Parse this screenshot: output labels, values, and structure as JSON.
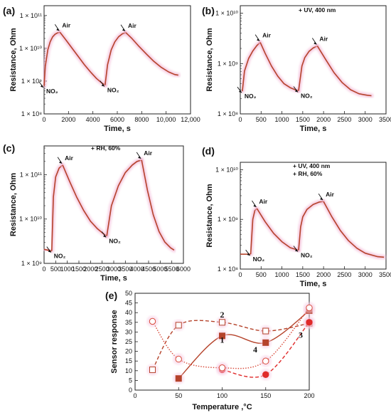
{
  "chart_data": [
    {
      "id": "a",
      "panel_label": "(a)",
      "type": "line",
      "xlabel": "Time, s",
      "ylabel": "Resistance, Ohm",
      "xlim": [
        0,
        12000
      ],
      "ylim_log10": [
        8,
        11.3
      ],
      "yscale": "log",
      "x_ticks": [
        0,
        2000,
        4000,
        6000,
        8000,
        10000,
        12000
      ],
      "x_tick_labels": [
        "0",
        "2000",
        "4000",
        "6000",
        "8000",
        "10,000",
        "12,000"
      ],
      "y_ticks_log10": [
        8,
        9,
        10,
        11
      ],
      "y_tick_labels": [
        "1 × 10⁸",
        "1 × 10⁹",
        "1 × 10¹⁰",
        "1 × 10¹¹"
      ],
      "conditions": [],
      "color": "#b5432b",
      "series": [
        {
          "x": [
            0,
            100,
            300,
            500,
            700,
            900,
            1100,
            1300
          ],
          "y": [
            8.85,
            9.45,
            9.95,
            10.2,
            10.35,
            10.43,
            10.47,
            10.49
          ]
        },
        {
          "x": [
            1300,
            1800,
            2300,
            2800,
            3300,
            3800,
            4300,
            4700,
            5000
          ],
          "y": [
            10.49,
            10.25,
            10.0,
            9.75,
            9.5,
            9.28,
            9.08,
            8.95,
            8.88
          ]
        },
        {
          "x": [
            5000,
            5200,
            5500,
            5800,
            6100,
            6400,
            6700
          ],
          "y": [
            8.88,
            9.5,
            9.95,
            10.2,
            10.35,
            10.44,
            10.48
          ]
        },
        {
          "x": [
            6700,
            7200,
            7800,
            8400,
            9000,
            9600,
            10200,
            10700,
            11000
          ],
          "y": [
            10.48,
            10.3,
            10.05,
            9.82,
            9.6,
            9.42,
            9.28,
            9.2,
            9.18
          ]
        }
      ],
      "annotations": [
        {
          "text": "Air",
          "x": 1300,
          "y": 10.49,
          "pos": "above"
        },
        {
          "text": "NO₂",
          "x": 0,
          "y": 8.85,
          "pos": "below"
        },
        {
          "text": "Air",
          "x": 6700,
          "y": 10.48,
          "pos": "above"
        },
        {
          "text": "NO₂",
          "x": 5000,
          "y": 8.88,
          "pos": "below"
        }
      ]
    },
    {
      "id": "b",
      "panel_label": "(b)",
      "type": "line",
      "xlabel": "Time, s",
      "ylabel": "Resistance, Ohm",
      "xlim": [
        0,
        3500
      ],
      "ylim_log10": [
        8,
        10.15
      ],
      "yscale": "log",
      "x_ticks": [
        0,
        500,
        1000,
        1500,
        2000,
        2500,
        3000,
        3500
      ],
      "x_tick_labels": [
        "0",
        "500",
        "1000",
        "1500",
        "2000",
        "2500",
        "3000",
        "3500"
      ],
      "y_ticks_log10": [
        8,
        9,
        10
      ],
      "y_tick_labels": [
        "1 × 10⁸",
        "1 × 10⁹",
        "1 × 10¹⁰"
      ],
      "conditions": [
        "+ UV, 400 nm"
      ],
      "color": "#b5432b",
      "series": [
        {
          "x": [
            50,
            100,
            200,
            300,
            400,
            480
          ],
          "y": [
            8.45,
            8.85,
            9.1,
            9.25,
            9.36,
            9.42
          ]
        },
        {
          "x": [
            480,
            600,
            750,
            900,
            1050,
            1200,
            1350,
            1400
          ],
          "y": [
            9.42,
            9.2,
            8.95,
            8.75,
            8.6,
            8.52,
            8.47,
            8.46
          ]
        },
        {
          "x": [
            1400,
            1480,
            1550,
            1650,
            1750,
            1850
          ],
          "y": [
            8.46,
            8.95,
            9.12,
            9.24,
            9.31,
            9.35
          ]
        },
        {
          "x": [
            1850,
            2050,
            2250,
            2450,
            2650,
            2850,
            3050,
            3150
          ],
          "y": [
            9.35,
            9.08,
            8.82,
            8.62,
            8.48,
            8.4,
            8.37,
            8.36
          ]
        }
      ],
      "annotations": [
        {
          "text": "Air",
          "x": 480,
          "y": 9.42,
          "pos": "above"
        },
        {
          "text": "NO₂",
          "x": 50,
          "y": 8.45,
          "pos": "below"
        },
        {
          "text": "Air",
          "x": 1850,
          "y": 9.35,
          "pos": "above"
        },
        {
          "text": "NO₂",
          "x": 1400,
          "y": 8.46,
          "pos": "below"
        }
      ]
    },
    {
      "id": "c",
      "panel_label": "(c)",
      "type": "line",
      "xlabel": "Time, s",
      "ylabel": "Resistance, Ohm",
      "xlim": [
        0,
        6000
      ],
      "ylim_log10": [
        9,
        11.65
      ],
      "yscale": "log",
      "x_ticks": [
        0,
        500,
        1000,
        1500,
        2000,
        2500,
        3000,
        3500,
        4000,
        4500,
        5000,
        5500,
        6000
      ],
      "x_tick_labels": [
        "0",
        "500",
        "1000",
        "1500",
        "2000",
        "2500",
        "3000",
        "3500",
        "4000",
        "4500",
        "5000",
        "5500",
        "6000"
      ],
      "y_ticks_log10": [
        9,
        10,
        11
      ],
      "y_tick_labels": [
        "1 × 10⁹",
        "1 × 10¹⁰",
        "1 × 10¹¹"
      ],
      "conditions": [
        "+ RH, 60%"
      ],
      "color": "#b5432b",
      "series": [
        {
          "x": [
            0,
            150,
            300,
            330
          ],
          "y": [
            9.32,
            9.3,
            9.28,
            9.28
          ]
        },
        {
          "x": [
            330,
            400,
            500,
            650,
            800
          ],
          "y": [
            9.28,
            10.5,
            10.95,
            11.15,
            11.22
          ]
        },
        {
          "x": [
            800,
            1100,
            1400,
            1700,
            2000,
            2300,
            2600,
            2700
          ],
          "y": [
            11.22,
            10.85,
            10.5,
            10.2,
            9.95,
            9.78,
            9.65,
            9.62
          ]
        },
        {
          "x": [
            2700,
            2900,
            3200,
            3500,
            3800,
            4000,
            4200
          ],
          "y": [
            9.62,
            10.3,
            10.75,
            11.05,
            11.22,
            11.3,
            11.33
          ]
        },
        {
          "x": [
            4200,
            4450,
            4700,
            4950,
            5200,
            5450,
            5600
          ],
          "y": [
            11.33,
            10.65,
            10.1,
            9.72,
            9.48,
            9.35,
            9.3
          ]
        }
      ],
      "annotations": [
        {
          "text": "Air",
          "x": 800,
          "y": 11.22,
          "pos": "above"
        },
        {
          "text": "NO₂",
          "x": 330,
          "y": 9.28,
          "pos": "below"
        },
        {
          "text": "Air",
          "x": 4200,
          "y": 11.33,
          "pos": "above"
        },
        {
          "text": "NO₂",
          "x": 2700,
          "y": 9.62,
          "pos": "below"
        }
      ]
    },
    {
      "id": "d",
      "panel_label": "(d)",
      "type": "line",
      "xlabel": "Time, s",
      "ylabel": "Resistance, Ohm",
      "xlim": [
        0,
        3500
      ],
      "ylim_log10": [
        8,
        10.15
      ],
      "yscale": "log",
      "x_ticks": [
        0,
        500,
        1000,
        1500,
        2000,
        2500,
        3000,
        3500
      ],
      "x_tick_labels": [
        "0",
        "500",
        "1000",
        "1500",
        "2000",
        "2500",
        "3000",
        "3500"
      ],
      "y_ticks_log10": [
        8,
        9,
        10
      ],
      "y_tick_labels": [
        "1 × 10⁸",
        "1 × 10⁹",
        "1 × 10¹⁰"
      ],
      "conditions": [
        "+ UV, 400 nm",
        "+ RH, 60%"
      ],
      "color": "#b5432b",
      "series": [
        {
          "x": [
            0,
            150,
            250
          ],
          "y": [
            8.3,
            8.3,
            8.3
          ]
        },
        {
          "x": [
            250,
            300,
            350,
            400
          ],
          "y": [
            8.3,
            9.0,
            9.18,
            9.22
          ]
        },
        {
          "x": [
            400,
            600,
            800,
            1000,
            1200,
            1400
          ],
          "y": [
            9.22,
            8.95,
            8.72,
            8.55,
            8.43,
            8.38
          ]
        },
        {
          "x": [
            1400,
            1450,
            1500,
            1600,
            1750,
            1900,
            2000
          ],
          "y": [
            8.38,
            8.85,
            9.05,
            9.2,
            9.3,
            9.35,
            9.36
          ]
        },
        {
          "x": [
            2000,
            2200,
            2400,
            2600,
            2800,
            3000,
            3300,
            3450
          ],
          "y": [
            9.36,
            9.05,
            8.78,
            8.57,
            8.42,
            8.32,
            8.25,
            8.24
          ]
        }
      ],
      "annotations": [
        {
          "text": "Air",
          "x": 400,
          "y": 9.22,
          "pos": "above"
        },
        {
          "text": "NO₂",
          "x": 250,
          "y": 8.3,
          "pos": "below"
        },
        {
          "text": "Air",
          "x": 2000,
          "y": 9.36,
          "pos": "above"
        },
        {
          "text": "NO₂",
          "x": 1400,
          "y": 8.38,
          "pos": "below"
        }
      ]
    },
    {
      "id": "e",
      "panel_label": "(e)",
      "type": "line",
      "xlabel": "Temperature ,°C",
      "ylabel": "Sensor response",
      "xlim": [
        0,
        200
      ],
      "ylim": [
        0,
        50
      ],
      "x_ticks": [
        0,
        50,
        100,
        150,
        200
      ],
      "x_tick_labels": [
        "0",
        "50",
        "100",
        "150",
        "200"
      ],
      "y_ticks": [
        0,
        5,
        10,
        15,
        20,
        25,
        30,
        35,
        40,
        45,
        50
      ],
      "y_tick_labels": [
        "0",
        "5",
        "10",
        "15",
        "20",
        "25",
        "30",
        "35",
        "40",
        "45",
        "50"
      ],
      "series": [
        {
          "name": "1",
          "marker": "square-filled",
          "line": "solid",
          "color": "#b5432b",
          "x": [
            50,
            100,
            150,
            200
          ],
          "y": [
            6,
            28,
            24.5,
            41
          ]
        },
        {
          "name": "2",
          "marker": "square-open",
          "line": "dashed",
          "color": "#b5432b",
          "x": [
            20,
            50,
            100,
            150,
            200
          ],
          "y": [
            10.5,
            33.5,
            35,
            30.5,
            34.5
          ]
        },
        {
          "name": "3",
          "marker": "circle-filled",
          "line": "dashed",
          "color": "#e02a2a",
          "x": [
            100,
            150,
            200
          ],
          "y": [
            10.5,
            8,
            35
          ]
        },
        {
          "name": "4",
          "marker": "circle-open",
          "line": "dotted",
          "color": "#d84a3a",
          "x": [
            20,
            50,
            100,
            150,
            200
          ],
          "y": [
            35.5,
            16,
            11.5,
            15,
            42.5
          ]
        }
      ]
    }
  ]
}
